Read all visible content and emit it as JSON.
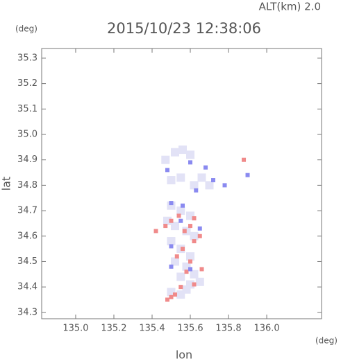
{
  "chart_data": {
    "type": "scatter",
    "title": "2015/10/23 12:38:06",
    "subtitle": "ALT(km) 2.0",
    "x_label": "lon",
    "y_label": "lat",
    "x_unit": "(deg)",
    "y_unit": "(deg)",
    "xlim": [
      134.822,
      136.287
    ],
    "ylim": [
      34.275,
      35.338
    ],
    "xticks": [
      {
        "value": 135,
        "label": "135.0"
      },
      135.2,
      135.4,
      135.6,
      135.8,
      {
        "value": 136,
        "label": "136.0"
      }
    ],
    "yticks": [
      34.3,
      34.4,
      34.5,
      34.6,
      34.7,
      34.8,
      34.9,
      {
        "value": 35,
        "label": "35.0"
      },
      35.1,
      35.2,
      35.3
    ],
    "series": [
      {
        "color": "#e2e2f6",
        "x": [
          135.52,
          135.56,
          135.6,
          135.47,
          135.5,
          135.55,
          135.62,
          135.66,
          135.7,
          135.5,
          135.55,
          135.6,
          135.48,
          135.52,
          135.58,
          135.62,
          135.5,
          135.55,
          135.6,
          135.52,
          135.58,
          135.62,
          135.55,
          135.6,
          135.65,
          135.5,
          135.55,
          135.58
        ],
        "values": [
          34.93,
          34.94,
          34.92,
          34.9,
          34.82,
          34.83,
          34.8,
          34.83,
          34.8,
          34.72,
          34.7,
          34.68,
          34.66,
          34.64,
          34.62,
          34.6,
          34.58,
          34.55,
          34.52,
          34.5,
          34.48,
          34.45,
          34.44,
          34.41,
          34.42,
          34.38,
          34.37,
          34.39
        ]
      },
      {
        "color": "#f08a8a",
        "x": [
          135.5,
          135.52,
          135.48,
          135.55,
          135.62,
          135.66,
          135.58,
          135.6,
          135.56,
          135.62,
          135.57,
          135.6,
          135.5,
          135.54,
          135.47,
          135.65,
          135.62,
          135.42,
          135.88,
          135.53
        ],
        "values": [
          34.36,
          34.37,
          34.35,
          34.4,
          34.41,
          34.47,
          34.46,
          34.5,
          34.55,
          34.58,
          34.62,
          34.64,
          34.66,
          34.68,
          34.64,
          34.6,
          34.67,
          34.62,
          34.9,
          34.52
        ]
      },
      {
        "color": "#8a8af0",
        "x": [
          135.5,
          135.56,
          135.5,
          135.65,
          135.68,
          135.72,
          135.78,
          135.63,
          135.6,
          135.5,
          135.55,
          135.9,
          135.48,
          135.6
        ],
        "values": [
          34.73,
          34.72,
          34.56,
          34.63,
          34.87,
          34.82,
          34.8,
          34.78,
          34.47,
          34.48,
          34.66,
          34.84,
          34.86,
          34.89
        ]
      }
    ]
  }
}
